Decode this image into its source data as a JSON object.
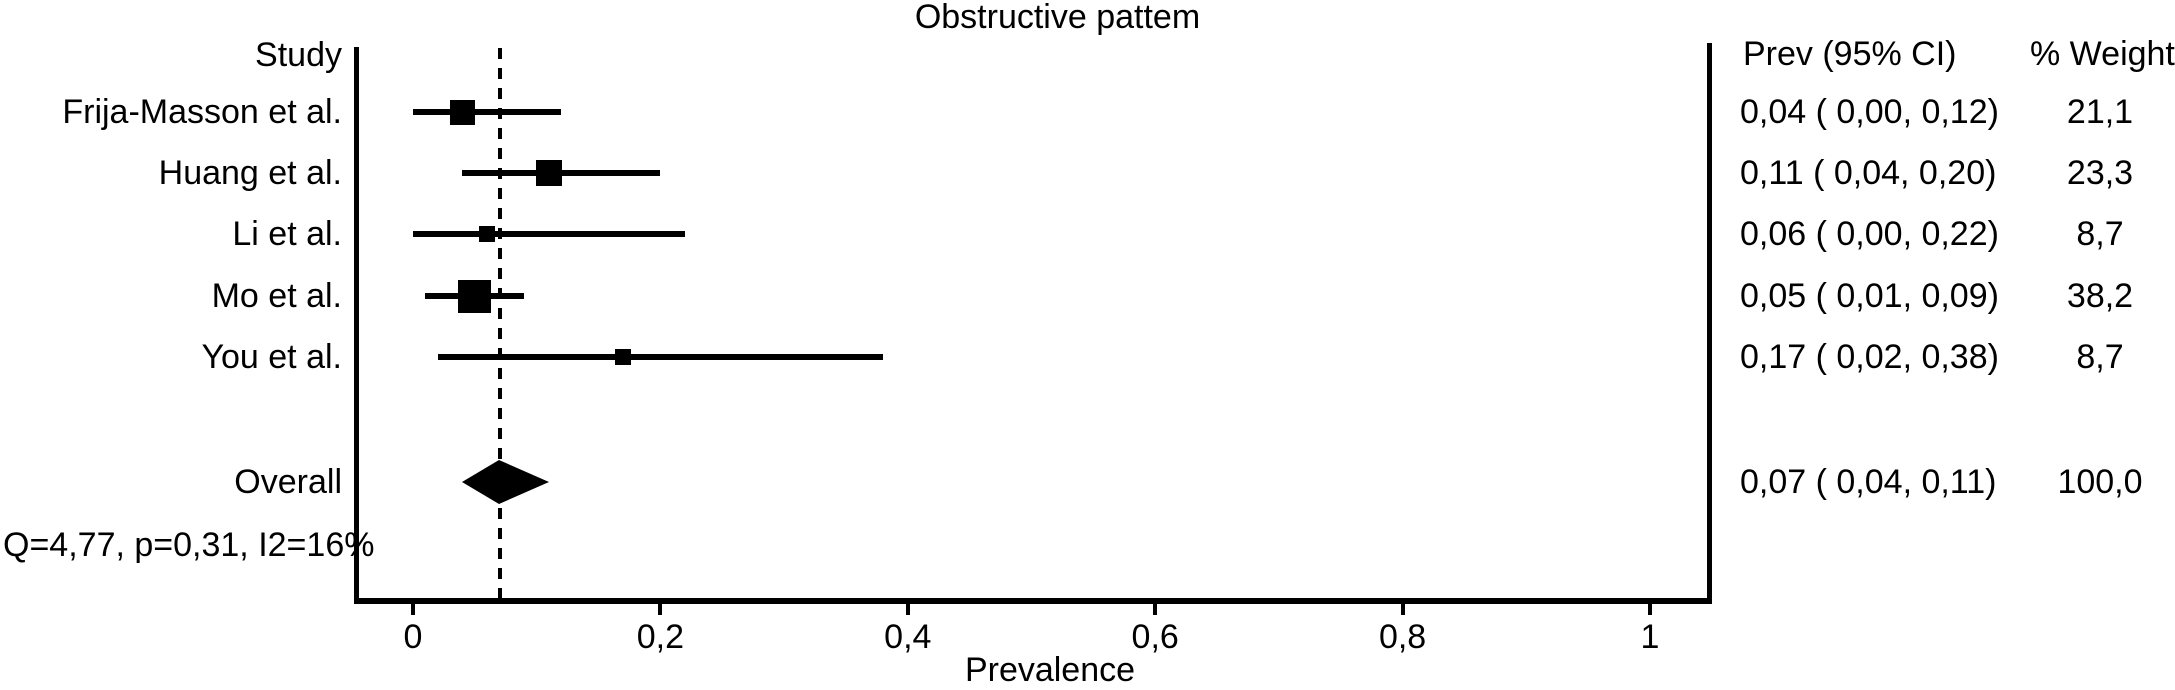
{
  "title": "Obstructive pattem",
  "columns": {
    "study_header": "Study",
    "prev_header": "Prev (95% CI)",
    "weight_header": "% Weight"
  },
  "chart_data": {
    "type": "forest",
    "title": "Obstructive pattem",
    "xlabel": "Prevalence",
    "xlim": [
      0,
      1
    ],
    "x_ticks": [
      0,
      0.2,
      0.4,
      0.6,
      0.8,
      1
    ],
    "x_tick_labels": [
      "0",
      "0,2",
      "0,4",
      "0,6",
      "0,8",
      "1"
    ],
    "reference_line": 0.07,
    "grid": false,
    "studies": [
      {
        "label": "Frija-Masson et al.",
        "prev": 0.04,
        "ci_low": 0.0,
        "ci_high": 0.12,
        "prev_text": "0,04 ( 0,00, 0,12)",
        "weight": 21.1,
        "weight_text": "21,1"
      },
      {
        "label": "Huang et al.",
        "prev": 0.11,
        "ci_low": 0.04,
        "ci_high": 0.2,
        "prev_text": "0,11 ( 0,04, 0,20)",
        "weight": 23.3,
        "weight_text": "23,3"
      },
      {
        "label": "Li et al.",
        "prev": 0.06,
        "ci_low": 0.0,
        "ci_high": 0.22,
        "prev_text": "0,06 ( 0,00, 0,22)",
        "weight": 8.7,
        "weight_text": "8,7"
      },
      {
        "label": "Mo et al.",
        "prev": 0.05,
        "ci_low": 0.01,
        "ci_high": 0.09,
        "prev_text": "0,05 ( 0,01, 0,09)",
        "weight": 38.2,
        "weight_text": "38,2"
      },
      {
        "label": "You et al.",
        "prev": 0.17,
        "ci_low": 0.02,
        "ci_high": 0.38,
        "prev_text": "0,17 ( 0,02, 0,38)",
        "weight": 8.7,
        "weight_text": "8,7"
      }
    ],
    "overall": {
      "label": "Overall",
      "prev": 0.07,
      "ci_low": 0.04,
      "ci_high": 0.11,
      "prev_text": "0,07 ( 0,04, 0,11)",
      "weight": 100.0,
      "weight_text": "100,0"
    },
    "heterogeneity": "Q=4,77, p=0,31, I2=16%"
  }
}
